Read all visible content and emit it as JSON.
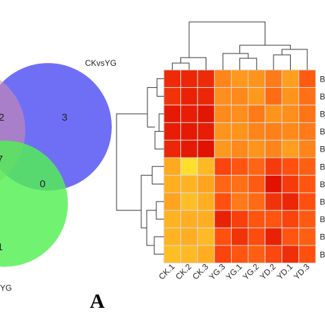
{
  "venn": {
    "set_labels": [
      "CKvsYG",
      "YG"
    ],
    "region_labels": [
      "2",
      "3",
      "7",
      "0",
      "1"
    ],
    "colors": {
      "blue": "#5b5bf5",
      "green": "#52f052",
      "pink": "#d98ca6"
    }
  },
  "panel_label": "A",
  "chart_data": {
    "type": "heatmap",
    "columns": [
      "CK.1",
      "CK.2",
      "CK.3",
      "YG.3",
      "YG.1",
      "YG.2",
      "YD.2",
      "YD.1",
      "YD.3"
    ],
    "row_labels": [
      "B",
      "B",
      "B",
      "B",
      "B",
      "B",
      "B",
      "B",
      "B",
      "B",
      "B"
    ],
    "values": [
      [
        0.84,
        0.86,
        0.84,
        0.46,
        0.38,
        0.4,
        0.5,
        0.36,
        0.62
      ],
      [
        0.8,
        0.88,
        0.86,
        0.42,
        0.44,
        0.38,
        0.56,
        0.4,
        0.54
      ],
      [
        0.92,
        0.9,
        0.94,
        0.44,
        0.42,
        0.5,
        0.4,
        0.42,
        0.52
      ],
      [
        0.9,
        0.92,
        0.9,
        0.4,
        0.4,
        0.46,
        0.48,
        0.44,
        0.5
      ],
      [
        0.86,
        0.92,
        0.96,
        0.38,
        0.44,
        0.4,
        0.46,
        0.36,
        0.46
      ],
      [
        0.32,
        0.12,
        0.26,
        0.72,
        0.64,
        0.58,
        0.76,
        0.66,
        0.6
      ],
      [
        0.3,
        0.28,
        0.34,
        0.58,
        0.54,
        0.62,
        0.96,
        0.76,
        0.64
      ],
      [
        0.34,
        0.24,
        0.3,
        0.66,
        0.5,
        0.56,
        0.8,
        0.86,
        0.66
      ],
      [
        0.28,
        0.3,
        0.3,
        0.88,
        0.74,
        0.64,
        0.64,
        0.72,
        0.62
      ],
      [
        0.28,
        0.3,
        0.26,
        0.66,
        0.8,
        0.68,
        0.88,
        0.64,
        0.6
      ],
      [
        0.24,
        0.26,
        0.3,
        0.72,
        0.64,
        0.6,
        0.7,
        0.82,
        0.66
      ]
    ],
    "color_scale": [
      "#ffff33",
      "#ffa520",
      "#ff4e10",
      "#dd0a00"
    ]
  }
}
